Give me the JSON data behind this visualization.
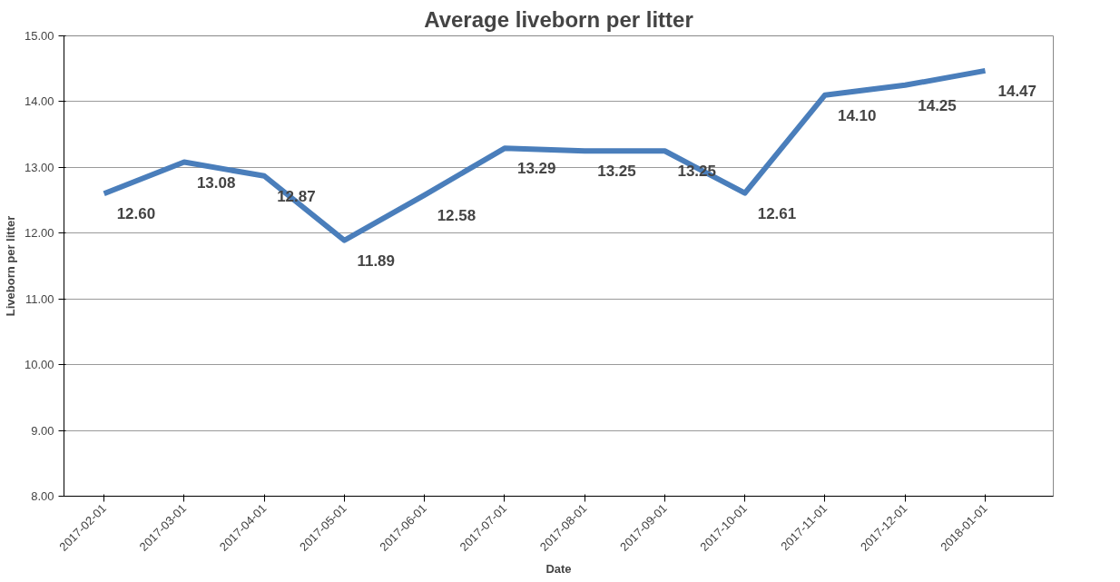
{
  "chart_data": {
    "type": "line",
    "title": "Average liveborn per litter",
    "xlabel": "Date",
    "ylabel": "Liveborn per litter",
    "categories": [
      "2017-02-01",
      "2017-03-01",
      "2017-04-01",
      "2017-05-01",
      "2017-06-01",
      "2017-07-01",
      "2017-08-01",
      "2017-09-01",
      "2017-10-01",
      "2017-11-01",
      "2017-12-01",
      "2018-01-01"
    ],
    "series": [
      {
        "color": "#4a7ebb",
        "values": [
          12.6,
          13.08,
          12.87,
          11.89,
          12.58,
          13.29,
          13.25,
          13.25,
          12.61,
          14.1,
          14.25,
          14.47
        ],
        "value_labels": [
          "12.60",
          "13.08",
          "12.87",
          "11.89",
          "12.58",
          "13.29",
          "13.25",
          "13.25",
          "12.61",
          "14.10",
          "14.25",
          "14.47"
        ]
      }
    ],
    "ylim": [
      8,
      15
    ],
    "yticks": [
      {
        "value": 8,
        "label": "8.00"
      },
      {
        "value": 9,
        "label": "9.00"
      },
      {
        "value": 10,
        "label": "10.00"
      },
      {
        "value": 11,
        "label": "11.00"
      },
      {
        "value": 12,
        "label": "12.00"
      },
      {
        "value": 13,
        "label": "13.00"
      },
      {
        "value": 14,
        "label": "14.00"
      },
      {
        "value": 15,
        "label": "15.00"
      }
    ],
    "grid": "y",
    "marker": "none",
    "line_style": "solid"
  }
}
